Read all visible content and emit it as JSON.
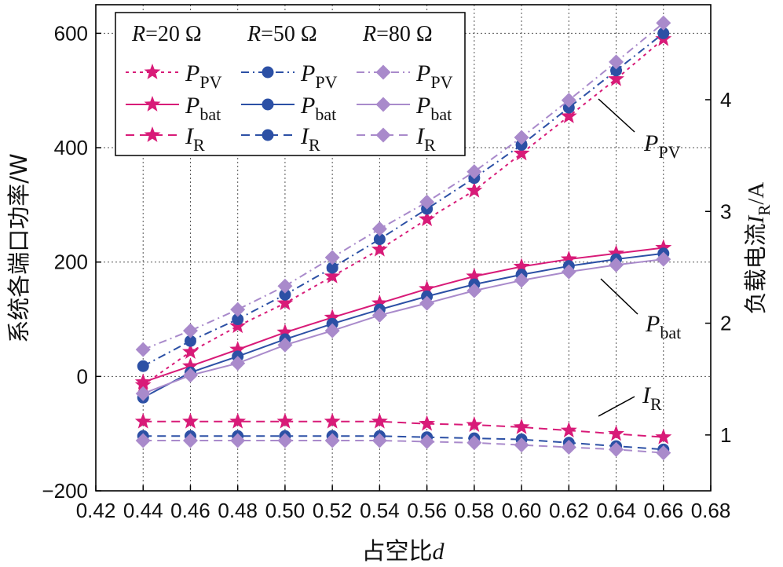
{
  "chart_data": {
    "type": "line",
    "xlabel": "占空比",
    "xlabel_var": "d",
    "ylabel_left": "系统各端口功率/W",
    "ylabel_right_prefix": "负载电流",
    "ylabel_right_var": "I",
    "ylabel_right_sub": "R",
    "ylabel_right_suffix": "/A",
    "xlim": [
      0.42,
      0.68
    ],
    "ylim_left": [
      -200,
      650
    ],
    "ylim_right": [
      0.5,
      4.85
    ],
    "x_ticks": [
      "0.42",
      "0.44",
      "0.46",
      "0.48",
      "0.50",
      "0.52",
      "0.54",
      "0.56",
      "0.58",
      "0.60",
      "0.62",
      "0.64",
      "0.66",
      "0.68"
    ],
    "yl_ticks": [
      "−200",
      "0",
      "200",
      "400",
      "600"
    ],
    "yr_ticks": [
      "1",
      "2",
      "3",
      "4"
    ],
    "grid": "dotted",
    "legend_position": "top-left",
    "legend_headers": [
      "R=20 Ω",
      "R=50 Ω",
      "R=80 Ω"
    ],
    "annotations": [
      {
        "var": "P",
        "sub": "PV"
      },
      {
        "var": "P",
        "sub": "bat"
      },
      {
        "var": "I",
        "sub": "R"
      }
    ],
    "x": [
      0.44,
      0.46,
      0.48,
      0.5,
      0.52,
      0.54,
      0.56,
      0.58,
      0.6,
      0.62,
      0.64,
      0.66
    ],
    "series": [
      {
        "name": "P_PV",
        "group": "R=20 Ω",
        "axis": "left",
        "style": "dotted",
        "marker": "star",
        "color": "#d81b78",
        "values": [
          -15,
          43,
          88,
          128,
          175,
          222,
          275,
          325,
          390,
          455,
          520,
          590
        ]
      },
      {
        "name": "P_bat",
        "group": "R=20 Ω",
        "axis": "left",
        "style": "solid",
        "marker": "star",
        "color": "#d81b78",
        "values": [
          -10,
          18,
          47,
          77,
          103,
          128,
          153,
          175,
          192,
          205,
          215,
          225
        ]
      },
      {
        "name": "I_R",
        "group": "R=20 Ω",
        "axis": "right",
        "style": "dashed",
        "marker": "star",
        "color": "#d81b78",
        "values": [
          1.12,
          1.12,
          1.12,
          1.12,
          1.12,
          1.12,
          1.1,
          1.09,
          1.07,
          1.04,
          1.01,
          0.98
        ]
      },
      {
        "name": "P_PV",
        "group": "R=50 Ω",
        "axis": "left",
        "style": "dashdot",
        "marker": "circle",
        "color": "#2c50a5",
        "values": [
          18,
          62,
          100,
          143,
          190,
          240,
          293,
          347,
          405,
          470,
          535,
          600
        ]
      },
      {
        "name": "P_bat",
        "group": "R=50 Ω",
        "axis": "left",
        "style": "solid",
        "marker": "circle",
        "color": "#2c50a5",
        "values": [
          -37,
          7,
          35,
          65,
          92,
          117,
          140,
          161,
          178,
          193,
          205,
          215
        ]
      },
      {
        "name": "I_R",
        "group": "R=50 Ω",
        "axis": "right",
        "style": "dashed",
        "marker": "circle",
        "color": "#2c50a5",
        "values": [
          0.99,
          0.99,
          0.99,
          0.99,
          0.99,
          0.99,
          0.98,
          0.97,
          0.96,
          0.93,
          0.9,
          0.87
        ]
      },
      {
        "name": "P_PV",
        "group": "R=80 Ω",
        "axis": "left",
        "style": "dashdot",
        "marker": "diamond",
        "color": "#a98acb",
        "values": [
          47,
          80,
          117,
          158,
          208,
          258,
          305,
          358,
          418,
          483,
          550,
          618
        ]
      },
      {
        "name": "P_bat",
        "group": "R=80 Ω",
        "axis": "left",
        "style": "solid",
        "marker": "diamond",
        "color": "#a98acb",
        "values": [
          -30,
          2,
          23,
          55,
          80,
          107,
          128,
          150,
          168,
          183,
          195,
          205
        ]
      },
      {
        "name": "I_R",
        "group": "R=80 Ω",
        "axis": "right",
        "style": "dashed",
        "marker": "diamond",
        "color": "#a98acb",
        "values": [
          0.95,
          0.95,
          0.95,
          0.95,
          0.95,
          0.95,
          0.94,
          0.93,
          0.91,
          0.89,
          0.87,
          0.84
        ]
      }
    ]
  }
}
